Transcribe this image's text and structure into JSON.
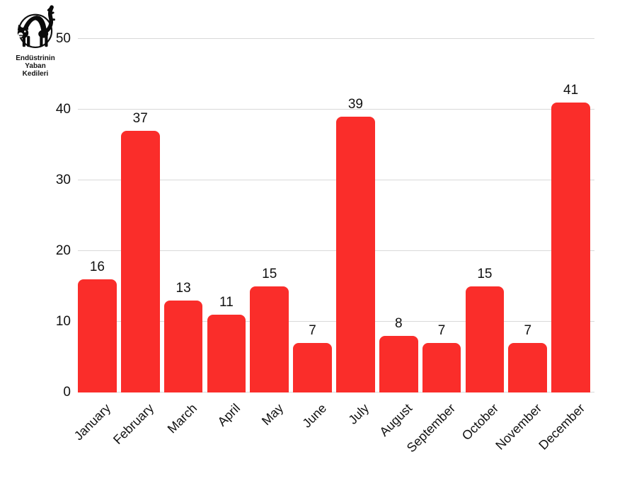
{
  "logo": {
    "icon": "black-cat-sabotage-icon",
    "line1": "Endüstrinin",
    "line2": "Yaban",
    "line3": "Kedileri"
  },
  "colors": {
    "bar": "#fa2d2a",
    "gridline": "#d9d9d9",
    "text": "#111111"
  },
  "chart_data": {
    "type": "bar",
    "title": "",
    "xlabel": "",
    "ylabel": "",
    "categories": [
      "January",
      "February",
      "March",
      "April",
      "May",
      "June",
      "July",
      "August",
      "September",
      "October",
      "November",
      "December"
    ],
    "values": [
      16,
      37,
      13,
      11,
      15,
      7,
      39,
      8,
      7,
      15,
      7,
      41
    ],
    "ylim": [
      0,
      50
    ],
    "yticks": [
      0,
      10,
      20,
      30,
      40,
      50
    ],
    "grid": true,
    "legend": "none",
    "bar_corner_radius_px": 8,
    "x_label_rotation_deg": -45
  }
}
